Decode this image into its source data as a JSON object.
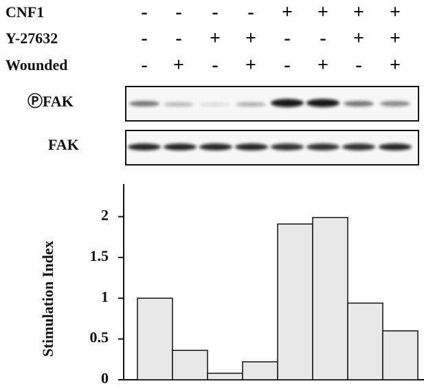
{
  "treatments": [
    {
      "label": "CNF1",
      "signs": [
        "-",
        "-",
        "-",
        "-",
        "+",
        "+",
        "+",
        "+"
      ]
    },
    {
      "label": "Y-27632",
      "signs": [
        "-",
        "-",
        "+",
        "+",
        "-",
        "-",
        "+",
        "+"
      ]
    },
    {
      "label": "Wounded",
      "signs": [
        "-",
        "+",
        "-",
        "+",
        "-",
        "+",
        "-",
        "+"
      ]
    }
  ],
  "blots": [
    {
      "label": "ⓅFAK"
    },
    {
      "label": "FAK"
    }
  ],
  "chart_data": {
    "type": "bar",
    "y_label": "Stimulation Index",
    "categories": [
      null,
      null,
      null,
      null,
      null,
      null,
      null,
      null
    ],
    "values": [
      1.0,
      0.36,
      0.08,
      0.22,
      1.91,
      1.99,
      0.94,
      0.6
    ],
    "color": "#e8e8e8",
    "ylim": [
      0,
      2.4
    ],
    "yticks": [
      0,
      0.5,
      1,
      1.5,
      2
    ]
  }
}
